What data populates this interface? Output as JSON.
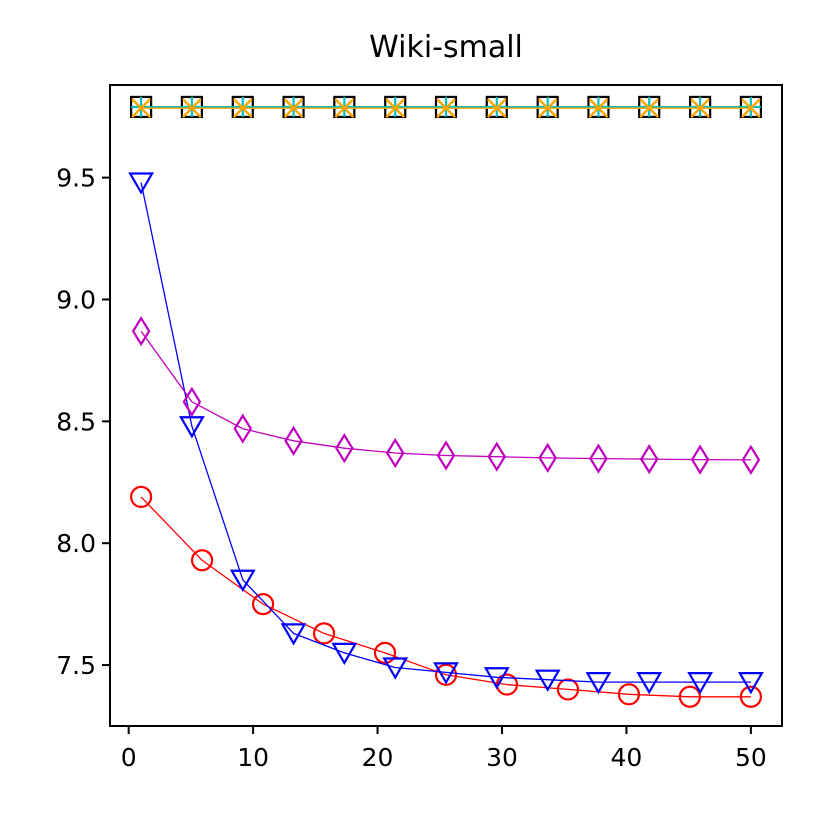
{
  "chart_data": {
    "type": "line",
    "title": "Wiki-small",
    "xlabel": "",
    "ylabel": "",
    "xlim": [
      -1.5,
      52.5
    ],
    "ylim": [
      7.25,
      9.88
    ],
    "xticks": [
      0,
      10,
      20,
      30,
      40,
      50
    ],
    "yticks": [
      7.5,
      8.0,
      8.5,
      9.0,
      9.5
    ],
    "xtick_labels": [
      "0",
      "10",
      "20",
      "30",
      "40",
      "50"
    ],
    "ytick_labels": [
      "7.5",
      "8.0",
      "8.5",
      "9.0",
      "9.5"
    ],
    "grid": false,
    "legend": "none",
    "series": [
      {
        "color": "#ff0000",
        "marker": "circle",
        "x": [
          1,
          5.9,
          10.8,
          15.7,
          20.6,
          25.5,
          30.4,
          35.3,
          40.2,
          45.1,
          50
        ],
        "y": [
          8.19,
          7.93,
          7.75,
          7.63,
          7.55,
          7.46,
          7.42,
          7.4,
          7.38,
          7.37,
          7.37
        ]
      },
      {
        "color": "#0000ff",
        "marker": "triangle-down",
        "x": [
          1,
          5.08,
          9.17,
          13.25,
          17.33,
          21.42,
          25.5,
          29.58,
          33.67,
          37.75,
          41.83,
          45.92,
          50
        ],
        "y": [
          9.48,
          8.48,
          7.85,
          7.63,
          7.55,
          7.49,
          7.47,
          7.45,
          7.44,
          7.43,
          7.43,
          7.43,
          7.43
        ]
      },
      {
        "color": "#bf00bf",
        "marker": "diamond",
        "x": [
          1,
          5.08,
          9.17,
          13.25,
          17.33,
          21.42,
          25.5,
          29.58,
          33.67,
          37.75,
          41.83,
          45.92,
          50
        ],
        "y": [
          8.87,
          8.58,
          8.47,
          8.42,
          8.39,
          8.37,
          8.36,
          8.355,
          8.35,
          8.347,
          8.345,
          8.343,
          8.342
        ]
      },
      {
        "color": "#000000",
        "marker": "square",
        "x": [
          1,
          5.08,
          9.17,
          13.25,
          17.33,
          21.42,
          25.5,
          29.58,
          33.67,
          37.75,
          41.83,
          45.92,
          50
        ],
        "y": [
          9.79,
          9.79,
          9.79,
          9.79,
          9.79,
          9.79,
          9.79,
          9.79,
          9.79,
          9.79,
          9.79,
          9.79,
          9.79
        ]
      },
      {
        "color": "#00bfbf",
        "marker": "plus",
        "x": [
          1,
          5.08,
          9.17,
          13.25,
          17.33,
          21.42,
          25.5,
          29.58,
          33.67,
          37.75,
          41.83,
          45.92,
          50
        ],
        "y": [
          9.79,
          9.79,
          9.79,
          9.79,
          9.79,
          9.79,
          9.79,
          9.79,
          9.79,
          9.79,
          9.79,
          9.79,
          9.79
        ]
      },
      {
        "color": "#ffa500",
        "marker": "x",
        "x": [
          1,
          5.08,
          9.17,
          13.25,
          17.33,
          21.42,
          25.5,
          29.58,
          33.67,
          37.75,
          41.83,
          45.92,
          50
        ],
        "y": [
          9.785,
          9.785,
          9.785,
          9.785,
          9.785,
          9.785,
          9.785,
          9.785,
          9.785,
          9.785,
          9.785,
          9.785,
          9.785
        ]
      }
    ]
  }
}
